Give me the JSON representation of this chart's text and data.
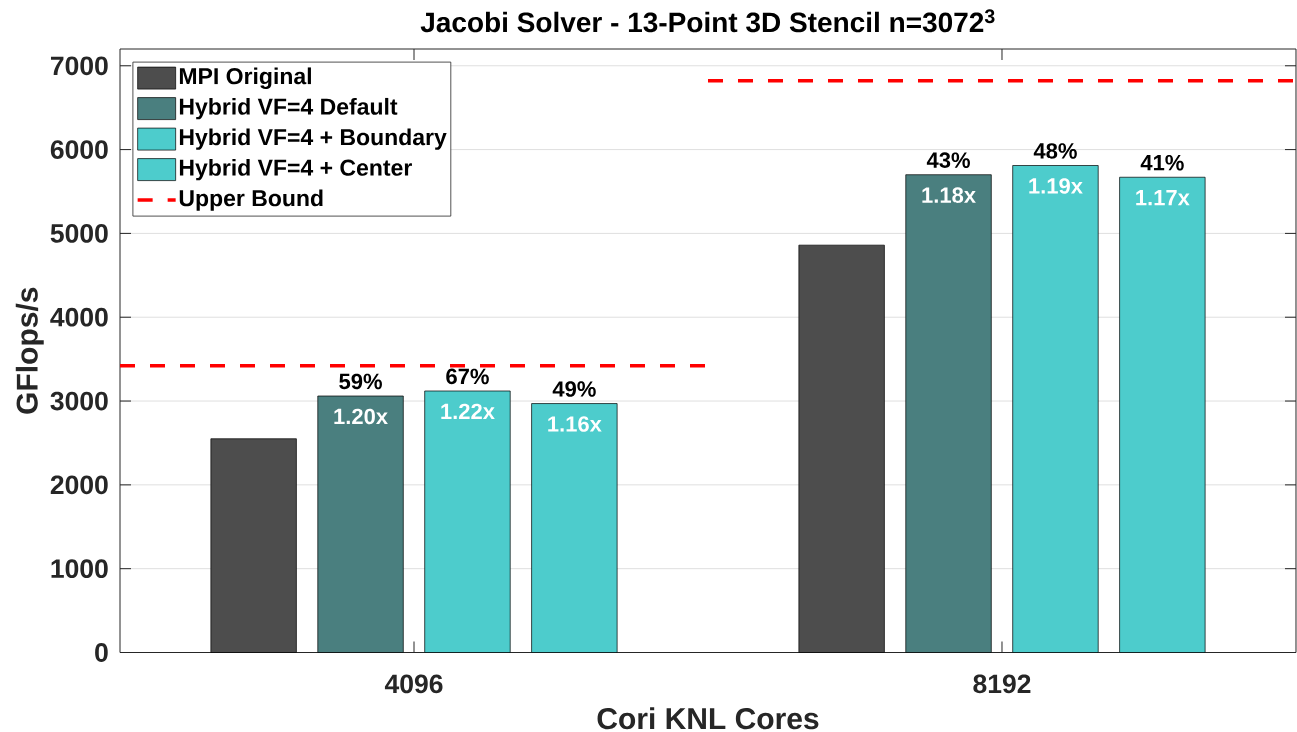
{
  "chart_data": {
    "type": "bar",
    "title": "Jacobi Solver - 13-Point 3D Stencil n=3072$^{3}$",
    "xlabel": "Cori KNL Cores",
    "ylabel": "GFlops/s",
    "categories": [
      "4096",
      "8192"
    ],
    "series": [
      {
        "name": "MPI Original",
        "color": "#4d4d4d",
        "values": [
          2550,
          4860
        ]
      },
      {
        "name": "Hybrid VF=4 Default",
        "color": "#4a7f7f",
        "values": [
          3060,
          5700
        ]
      },
      {
        "name": "Hybrid VF=4 + Boundary",
        "color": "#4dcccc",
        "values": [
          3120,
          5810
        ]
      },
      {
        "name": "Hybrid VF=4 + Center",
        "color": "#4dcccc",
        "values": [
          2970,
          5670
        ]
      }
    ],
    "ref_lines": [
      {
        "axis": "y",
        "value": 3420,
        "label": "Upper Bound",
        "color": "#ff0000",
        "line_style": "dashed"
      },
      {
        "axis": "y",
        "value": 6820,
        "color": "#ff0000",
        "line_style": "dashed"
      }
    ],
    "annotations": [
      "59%",
      "1.20x",
      "67%",
      "1.22x",
      "49%",
      "1.16x",
      "43%",
      "1.18x",
      "48%",
      "1.19x",
      "41%",
      "1.17x"
    ],
    "ylim": [
      0,
      7200
    ],
    "yticks": [
      0,
      1000,
      2000,
      3000,
      4000,
      5000,
      6000,
      7000
    ],
    "grid": "y",
    "legend": "top left"
  }
}
